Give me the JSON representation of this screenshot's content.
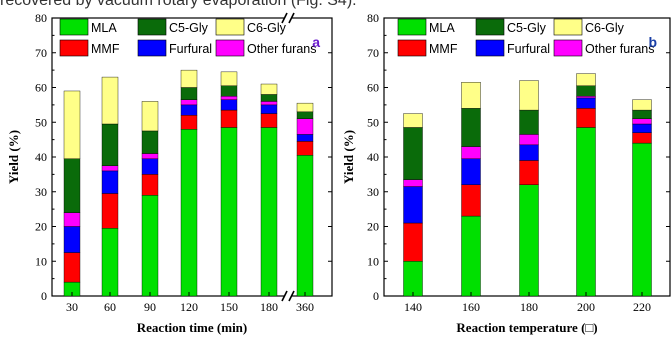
{
  "caption": "recovered by vacuum rotary evaporation (Fig. S4).",
  "colors": {
    "MLA": "#00e000",
    "C5-Gly": "#0a6b0a",
    "C6-Gly": "#ffff88",
    "MMF": "#ff0000",
    "Furfural": "#0000ff",
    "Other furans": "#ff00ff"
  },
  "chart_data": [
    {
      "type": "bar",
      "stacked": true,
      "panel_label": "a",
      "xlabel": "Reaction time (min)",
      "ylabel": "Yield (%)",
      "ylim": [
        0,
        80
      ],
      "yticks": [
        0,
        10,
        20,
        30,
        40,
        50,
        60,
        70,
        80
      ],
      "categories": [
        "30",
        "60",
        "90",
        "120",
        "150",
        "180",
        "360"
      ],
      "axis_break_after_index": 5,
      "legend": [
        "MLA",
        "C5-Gly",
        "C6-Gly",
        "MMF",
        "Furfural",
        "Other furans"
      ],
      "legend_position": "top",
      "series": [
        {
          "name": "MLA",
          "values": [
            4.0,
            19.5,
            29.0,
            48.0,
            48.5,
            48.5,
            40.5
          ]
        },
        {
          "name": "MMF",
          "values": [
            8.5,
            10.0,
            6.0,
            4.0,
            5.0,
            4.0,
            4.0
          ]
        },
        {
          "name": "Furfural",
          "values": [
            7.5,
            6.5,
            4.5,
            3.0,
            3.0,
            2.5,
            2.0
          ]
        },
        {
          "name": "Other furans",
          "values": [
            4.0,
            1.5,
            1.5,
            1.5,
            1.0,
            1.0,
            4.5
          ]
        },
        {
          "name": "C5-Gly",
          "values": [
            15.5,
            12.0,
            6.5,
            3.5,
            3.0,
            2.0,
            2.0
          ]
        },
        {
          "name": "C6-Gly",
          "values": [
            19.5,
            13.5,
            8.5,
            5.0,
            4.0,
            3.0,
            2.5
          ]
        }
      ]
    },
    {
      "type": "bar",
      "stacked": true,
      "panel_label": "b",
      "xlabel": "Reaction temperature (□)",
      "ylabel": "Yield (%)",
      "ylim": [
        0,
        80
      ],
      "yticks": [
        0,
        10,
        20,
        30,
        40,
        50,
        60,
        70,
        80
      ],
      "categories": [
        "140",
        "160",
        "180",
        "200",
        "220"
      ],
      "legend": [
        "MLA",
        "C5-Gly",
        "C6-Gly",
        "MMF",
        "Furfural",
        "Other furans"
      ],
      "legend_position": "top",
      "series": [
        {
          "name": "MLA",
          "values": [
            10.0,
            23.0,
            32.0,
            48.5,
            44.0
          ]
        },
        {
          "name": "MMF",
          "values": [
            11.0,
            9.0,
            7.0,
            5.5,
            3.0
          ]
        },
        {
          "name": "Furfural",
          "values": [
            10.5,
            7.5,
            4.5,
            3.0,
            2.5
          ]
        },
        {
          "name": "Other furans",
          "values": [
            2.0,
            3.5,
            3.0,
            0.5,
            1.5
          ]
        },
        {
          "name": "C5-Gly",
          "values": [
            15.0,
            11.0,
            7.0,
            3.0,
            2.5
          ]
        },
        {
          "name": "C6-Gly",
          "values": [
            4.0,
            7.5,
            8.5,
            3.5,
            3.0
          ]
        }
      ]
    }
  ]
}
